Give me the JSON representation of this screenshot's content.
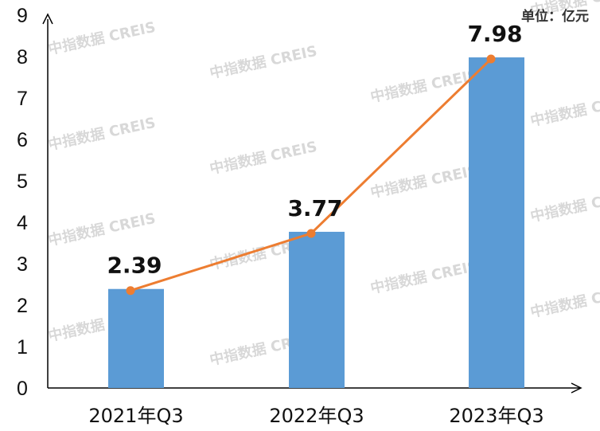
{
  "chart_data": {
    "type": "bar",
    "unit": "单位：亿元",
    "categories": [
      "2021年Q3",
      "2022年Q3",
      "2023年Q3"
    ],
    "series": [
      {
        "type": "bar",
        "values": [
          2.39,
          3.77,
          7.98
        ]
      },
      {
        "type": "line",
        "values": [
          2.39,
          3.77,
          7.98
        ]
      }
    ],
    "data_labels": [
      "2.39",
      "3.77",
      "7.98"
    ],
    "ylim": [
      0,
      9
    ],
    "yticks": [
      0,
      1,
      2,
      3,
      4,
      5,
      6,
      7,
      8,
      9
    ],
    "grid": false,
    "legend": "none",
    "colors": {
      "bar": "#5b9bd5",
      "line": "#ed7d31",
      "axis": "#000000"
    },
    "watermark": "中指数据 CREIS"
  }
}
